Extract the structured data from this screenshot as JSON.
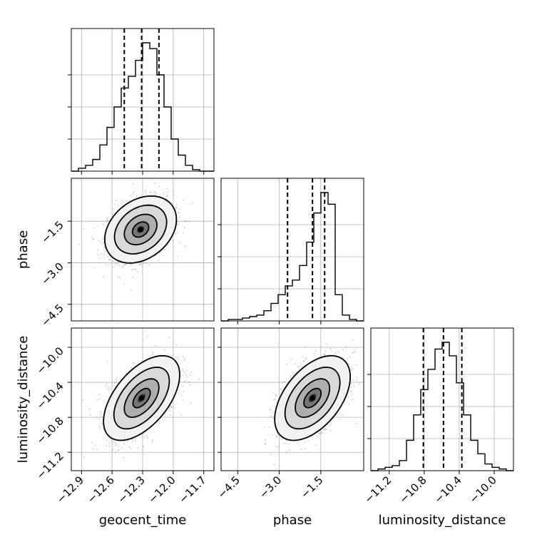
{
  "chart_data": {
    "type": "corner",
    "parameters": [
      "geocent_time",
      "phase",
      "luminosity_distance"
    ],
    "ranges": {
      "geocent_time": [
        -13.0,
        -11.6
      ],
      "phase": [
        -5.1,
        0.05
      ],
      "luminosity_distance": [
        -11.41,
        -9.78
      ]
    },
    "ticks": {
      "geocent_time": {
        "values": [
          -12.9,
          -12.6,
          -12.3,
          -12.0,
          -11.7
        ],
        "labels": [
          "−12.9",
          "−12.6",
          "−12.3",
          "−12.0",
          "−11.7"
        ]
      },
      "phase": {
        "values": [
          -4.5,
          -3.0,
          -1.5
        ],
        "labels": [
          "−4.5",
          "−3.0",
          "−1.5"
        ]
      },
      "luminosity_distance": {
        "values": [
          -11.2,
          -10.8,
          -10.4,
          -10.0
        ],
        "labels": [
          "−11.2",
          "−10.8",
          "−10.4",
          "−10.0"
        ]
      }
    },
    "quantiles": {
      "geocent_time": [
        -12.48,
        -12.31,
        -12.14
      ],
      "phase": [
        -2.7,
        -1.8,
        -1.36
      ],
      "luminosity_distance": [
        -10.81,
        -10.58,
        -10.37
      ]
    },
    "histograms": {
      "geocent_time": {
        "start": -13.0,
        "width": 0.07,
        "counts": [
          0,
          2,
          4,
          8,
          18,
          30,
          44,
          57,
          65,
          76,
          88,
          84,
          66,
          44,
          22,
          11,
          4,
          1,
          0,
          0
        ]
      },
      "phase": {
        "start": -5.1,
        "width": 0.2575,
        "counts": [
          0,
          1,
          1,
          2,
          3,
          4,
          7,
          12,
          18,
          24,
          28,
          38,
          54,
          74,
          88,
          80,
          18,
          4,
          1,
          0
        ]
      },
      "luminosity_distance": {
        "start": -11.41,
        "width": 0.0815,
        "counts": [
          0,
          1,
          2,
          3,
          6,
          18,
          33,
          48,
          60,
          72,
          76,
          68,
          52,
          33,
          18,
          10,
          4,
          2,
          1,
          0
        ]
      }
    },
    "scatter_2d": [
      {
        "x": "geocent_time",
        "y": "phase",
        "center": [
          -12.32,
          -1.8
        ],
        "sd": [
          0.16,
          0.55
        ],
        "rho": 0.3
      },
      {
        "x": "geocent_time",
        "y": "luminosity_distance",
        "center": [
          -12.31,
          -10.58
        ],
        "sd": [
          0.17,
          0.22
        ],
        "rho": 0.55
      },
      {
        "x": "phase",
        "y": "luminosity_distance",
        "center": [
          -1.8,
          -10.58
        ],
        "sd": [
          0.62,
          0.22
        ],
        "rho": 0.5
      }
    ],
    "grid": true,
    "colors": {
      "line": "#000000",
      "grid": "#b0b0b0",
      "points": "#8c8c8c"
    }
  }
}
